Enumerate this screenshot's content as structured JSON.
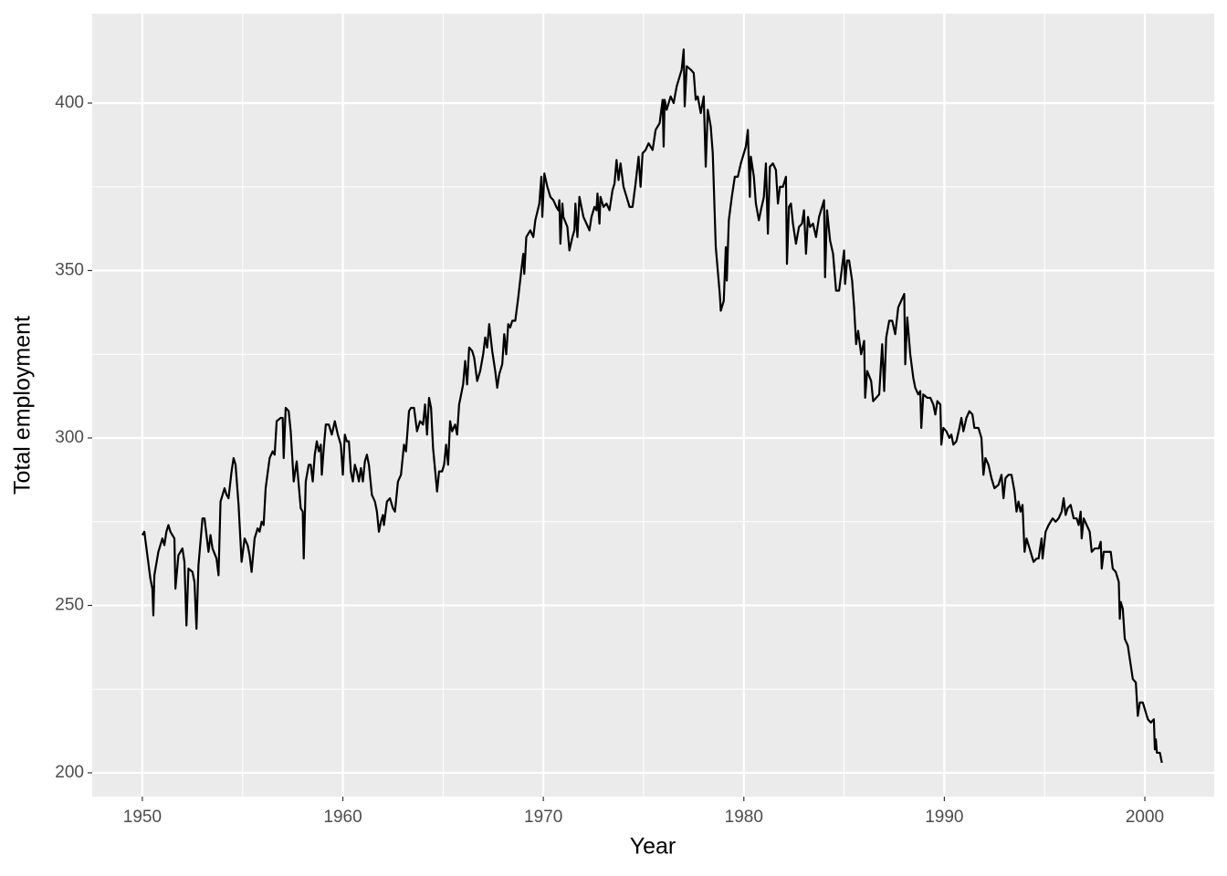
{
  "chart_data": {
    "type": "line",
    "xlabel": "Year",
    "ylabel": "Total employment",
    "color": "#000000",
    "grid": true,
    "xlim": [
      1947.5,
      2003.46
    ],
    "ylim": [
      192.9,
      426.7
    ],
    "xticks": [
      1950,
      1960,
      1970,
      1980,
      1990,
      2000
    ],
    "yticks": [
      200,
      250,
      300,
      350,
      400
    ],
    "xminor": [
      1955,
      1965,
      1975,
      1985,
      1995
    ],
    "yminor": [
      225,
      275,
      325,
      375
    ],
    "x": [
      1950.0,
      1950.1,
      1950.25,
      1950.4,
      1950.5,
      1950.55,
      1950.6,
      1950.8,
      1951.0,
      1951.1,
      1951.2,
      1951.3,
      1951.4,
      1951.6,
      1951.65,
      1951.8,
      1952.0,
      1952.1,
      1952.2,
      1952.3,
      1952.5,
      1952.6,
      1952.7,
      1952.8,
      1953.0,
      1953.1,
      1953.3,
      1953.4,
      1953.5,
      1953.7,
      1953.8,
      1953.9,
      1954.1,
      1954.2,
      1954.3,
      1954.45,
      1954.55,
      1954.65,
      1954.8,
      1954.95,
      1955.1,
      1955.25,
      1955.35,
      1955.45,
      1955.6,
      1955.75,
      1955.85,
      1955.95,
      1956.05,
      1956.15,
      1956.35,
      1956.5,
      1956.6,
      1956.7,
      1956.9,
      1957.0,
      1957.05,
      1957.15,
      1957.3,
      1957.4,
      1957.55,
      1957.7,
      1957.9,
      1958.0,
      1958.05,
      1958.15,
      1958.3,
      1958.4,
      1958.5,
      1958.6,
      1958.7,
      1958.8,
      1958.9,
      1958.95,
      1959.05,
      1959.15,
      1959.3,
      1959.45,
      1959.6,
      1959.75,
      1959.9,
      1960.0,
      1960.1,
      1960.2,
      1960.3,
      1960.4,
      1960.5,
      1960.6,
      1960.7,
      1960.8,
      1960.9,
      1961.0,
      1961.1,
      1961.2,
      1961.3,
      1961.45,
      1961.6,
      1961.7,
      1961.8,
      1961.9,
      1962.0,
      1962.05,
      1962.2,
      1962.35,
      1962.5,
      1962.6,
      1962.75,
      1962.9,
      1963.05,
      1963.15,
      1963.3,
      1963.4,
      1963.55,
      1963.7,
      1963.85,
      1964.0,
      1964.1,
      1964.2,
      1964.3,
      1964.4,
      1964.5,
      1964.7,
      1964.8,
      1964.95,
      1965.05,
      1965.15,
      1965.25,
      1965.35,
      1965.45,
      1965.6,
      1965.7,
      1965.8,
      1966.0,
      1966.1,
      1966.2,
      1966.3,
      1966.45,
      1966.55,
      1966.7,
      1966.85,
      1967.0,
      1967.1,
      1967.2,
      1967.3,
      1967.45,
      1967.6,
      1967.7,
      1967.8,
      1967.95,
      1968.05,
      1968.15,
      1968.25,
      1968.35,
      1968.45,
      1968.6,
      1968.75,
      1968.9,
      1969.0,
      1969.05,
      1969.15,
      1969.35,
      1969.5,
      1969.6,
      1969.8,
      1969.9,
      1969.95,
      1970.05,
      1970.2,
      1970.35,
      1970.5,
      1970.65,
      1970.75,
      1970.8,
      1970.85,
      1970.95,
      1971.0,
      1971.2,
      1971.3,
      1971.45,
      1971.55,
      1971.6,
      1971.7,
      1971.8,
      1972.0,
      1972.15,
      1972.3,
      1972.4,
      1972.55,
      1972.65,
      1972.7,
      1972.8,
      1972.85,
      1973.0,
      1973.15,
      1973.3,
      1973.45,
      1973.55,
      1973.65,
      1973.75,
      1973.85,
      1974.0,
      1974.15,
      1974.3,
      1974.45,
      1974.6,
      1974.75,
      1974.85,
      1974.95,
      1975.1,
      1975.25,
      1975.45,
      1975.6,
      1975.8,
      1975.95,
      1976.0,
      1976.05,
      1976.15,
      1976.35,
      1976.5,
      1976.65,
      1976.9,
      1977.0,
      1977.05,
      1977.15,
      1977.35,
      1977.5,
      1977.6,
      1977.7,
      1977.85,
      1978.0,
      1978.1,
      1978.2,
      1978.35,
      1978.45,
      1978.6,
      1978.8,
      1978.85,
      1979.0,
      1979.1,
      1979.15,
      1979.25,
      1979.4,
      1979.55,
      1979.7,
      1979.85,
      1980.0,
      1980.1,
      1980.2,
      1980.3,
      1980.35,
      1980.5,
      1980.6,
      1980.75,
      1980.85,
      1981.0,
      1981.1,
      1981.2,
      1981.3,
      1981.45,
      1981.6,
      1981.7,
      1981.8,
      1981.95,
      1982.1,
      1982.15,
      1982.25,
      1982.35,
      1982.45,
      1982.6,
      1982.75,
      1982.9,
      1983.0,
      1983.1,
      1983.2,
      1983.3,
      1983.45,
      1983.6,
      1983.75,
      1983.9,
      1984.0,
      1984.05,
      1984.15,
      1984.3,
      1984.45,
      1984.6,
      1984.75,
      1984.9,
      1985.0,
      1985.05,
      1985.15,
      1985.25,
      1985.4,
      1985.5,
      1985.6,
      1985.7,
      1985.85,
      1986.0,
      1986.05,
      1986.15,
      1986.35,
      1986.45,
      1986.6,
      1986.75,
      1986.9,
      1987.0,
      1987.1,
      1987.25,
      1987.4,
      1987.55,
      1987.7,
      1987.85,
      1988.0,
      1988.05,
      1988.15,
      1988.3,
      1988.45,
      1988.55,
      1988.7,
      1988.8,
      1988.85,
      1988.95,
      1989.15,
      1989.3,
      1989.45,
      1989.55,
      1989.65,
      1989.8,
      1989.85,
      1989.95,
      1990.1,
      1990.25,
      1990.35,
      1990.45,
      1990.6,
      1990.75,
      1990.85,
      1990.95,
      1991.1,
      1991.25,
      1991.4,
      1991.5,
      1991.7,
      1991.85,
      1991.95,
      1992.05,
      1992.2,
      1992.35,
      1992.5,
      1992.7,
      1992.85,
      1992.95,
      1993.05,
      1993.2,
      1993.35,
      1993.5,
      1993.6,
      1993.7,
      1993.8,
      1993.9,
      1994.0,
      1994.1,
      1994.3,
      1994.45,
      1994.6,
      1994.7,
      1994.85,
      1994.9,
      1995.05,
      1995.2,
      1995.4,
      1995.55,
      1995.7,
      1995.85,
      1995.95,
      1996.05,
      1996.15,
      1996.3,
      1996.45,
      1996.6,
      1996.7,
      1996.8,
      1996.85,
      1996.95,
      1997.1,
      1997.25,
      1997.35,
      1997.5,
      1997.7,
      1997.8,
      1997.85,
      1997.95,
      1998.1,
      1998.3,
      1998.4,
      1998.55,
      1998.7,
      1998.75,
      1998.8,
      1998.9,
      1999.0,
      1999.15,
      1999.3,
      1999.4,
      1999.55,
      1999.65,
      1999.75,
      1999.9,
      2000.05,
      2000.15,
      2000.3,
      2000.45,
      2000.5,
      2000.55,
      2000.6,
      2000.75,
      2000.85
    ],
    "values": [
      271,
      272,
      265,
      258,
      255,
      247,
      259,
      266,
      270,
      268,
      272,
      274,
      272,
      270,
      255,
      265,
      267,
      263,
      244,
      261,
      260,
      257,
      243,
      262,
      276,
      276,
      266,
      271,
      267,
      264,
      259,
      281,
      285,
      283,
      282,
      290,
      294,
      292,
      280,
      263,
      270,
      268,
      265,
      260,
      270,
      273,
      272,
      275,
      274,
      285,
      294,
      296,
      295,
      305,
      306,
      306,
      294,
      309,
      308,
      302,
      287,
      293,
      279,
      278,
      264,
      287,
      292,
      292,
      287,
      295,
      299,
      296,
      298,
      289,
      297,
      304,
      304,
      301,
      305,
      301,
      298,
      289,
      301,
      299,
      299,
      290,
      287,
      292,
      290,
      287,
      291,
      287,
      293,
      295,
      292,
      283,
      281,
      278,
      272,
      275,
      277,
      274,
      281,
      282,
      279,
      278,
      287,
      289,
      298,
      296,
      308,
      309,
      309,
      302,
      305,
      304,
      310,
      301,
      312,
      309,
      297,
      284,
      290,
      290,
      292,
      298,
      292,
      305,
      302,
      304,
      301,
      310,
      316,
      323,
      316,
      327,
      326,
      324,
      317,
      320,
      325,
      330,
      327,
      334,
      326,
      320,
      315,
      319,
      322,
      331,
      325,
      334,
      333,
      335,
      335,
      342,
      350,
      355,
      349,
      360,
      362,
      360,
      365,
      370,
      378,
      366,
      379,
      375,
      372,
      371,
      369,
      368,
      371,
      358,
      370,
      366,
      363,
      356,
      360,
      362,
      370,
      360,
      372,
      366,
      364,
      362,
      366,
      369,
      368,
      373,
      364,
      372,
      369,
      370,
      368,
      374,
      376,
      383,
      377,
      382,
      375,
      372,
      369,
      369,
      376,
      384,
      375,
      385,
      386,
      388,
      386,
      392,
      394,
      401,
      387,
      401,
      398,
      402,
      400,
      405,
      410,
      416,
      399,
      411,
      410,
      409,
      401,
      402,
      397,
      402,
      381,
      398,
      393,
      385,
      357,
      343,
      338,
      341,
      357,
      347,
      365,
      372,
      378,
      378,
      382,
      385,
      387,
      392,
      372,
      384,
      378,
      370,
      365,
      368,
      372,
      382,
      361,
      381,
      382,
      380,
      370,
      375,
      375,
      378,
      352,
      369,
      370,
      364,
      358,
      363,
      364,
      368,
      355,
      366,
      363,
      364,
      360,
      366,
      369,
      371,
      348,
      368,
      359,
      355,
      344,
      344,
      351,
      356,
      346,
      353,
      353,
      347,
      339,
      328,
      332,
      325,
      329,
      312,
      320,
      317,
      311,
      312,
      313,
      328,
      314,
      330,
      335,
      335,
      331,
      339,
      341,
      343,
      322,
      336,
      325,
      318,
      315,
      313,
      314,
      303,
      313,
      312,
      312,
      310,
      307,
      311,
      310,
      298,
      303,
      302,
      300,
      301,
      298,
      299,
      303,
      306,
      302,
      306,
      308,
      307,
      303,
      303,
      300,
      289,
      294,
      292,
      288,
      285,
      286,
      289,
      282,
      288,
      289,
      289,
      284,
      278,
      281,
      278,
      280,
      266,
      270,
      266,
      263,
      264,
      264,
      270,
      264,
      272,
      274,
      276,
      275,
      276,
      278,
      282,
      277,
      279,
      280,
      276,
      276,
      274,
      278,
      270,
      276,
      274,
      272,
      266,
      267,
      267,
      269,
      261,
      266,
      266,
      266,
      261,
      260,
      257,
      246,
      251,
      249,
      240,
      238,
      232,
      228,
      227,
      217,
      221,
      221,
      218,
      216,
      215,
      216,
      207,
      210,
      206,
      206,
      203
    ]
  }
}
